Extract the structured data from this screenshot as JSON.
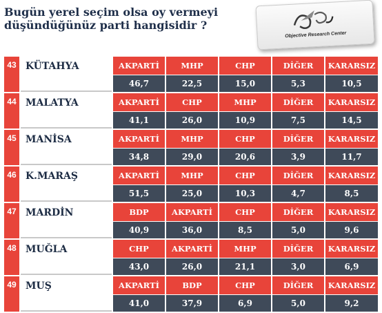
{
  "header": {
    "title": "Bugün yerel seçim olsa oy vermeyi düşündüğünüz  parti hangisidir ?",
    "logo_text": "Objective Research Center",
    "logo_mark": "ORC"
  },
  "colors": {
    "accent_red": "#e8443a",
    "value_bg": "#3f4a59",
    "title_color": "#1f2f4a"
  },
  "rows": [
    {
      "no": "43",
      "city": "KÜTAHYA",
      "parties": [
        "AKPARTİ",
        "MHP",
        "CHP",
        "DİĞER",
        "KARARSIZ"
      ],
      "values": [
        "46,7",
        "22,5",
        "15,0",
        "5,3",
        "10,5"
      ]
    },
    {
      "no": "44",
      "city": "MALATYA",
      "parties": [
        "AKPARTİ",
        "CHP",
        "MHP",
        "DİĞER",
        "KARARSIZ"
      ],
      "values": [
        "41,1",
        "26,0",
        "10,9",
        "7,5",
        "14,5"
      ]
    },
    {
      "no": "45",
      "city": "MANİSA",
      "parties": [
        "AKPARTİ",
        "MHP",
        "CHP",
        "DİĞER",
        "KARARSIZ"
      ],
      "values": [
        "34,8",
        "29,0",
        "20,6",
        "3,9",
        "11,7"
      ]
    },
    {
      "no": "46",
      "city": "K.MARAŞ",
      "parties": [
        "AKPARTİ",
        "MHP",
        "CHP",
        "DİĞER",
        "KARARSIZ"
      ],
      "values": [
        "51,5",
        "25,0",
        "10,3",
        "4,7",
        "8,5"
      ]
    },
    {
      "no": "47",
      "city": "MARDİN",
      "parties": [
        "BDP",
        "AKPARTİ",
        "CHP",
        "DİĞER",
        "KARARSIZ"
      ],
      "values": [
        "40,9",
        "36,0",
        "8,5",
        "5,0",
        "9,6"
      ]
    },
    {
      "no": "48",
      "city": "MUĞLA",
      "parties": [
        "CHP",
        "AKPARTİ",
        "MHP",
        "DİĞER",
        "KARARSIZ"
      ],
      "values": [
        "43,0",
        "26,0",
        "21,1",
        "3,0",
        "6,9"
      ]
    },
    {
      "no": "49",
      "city": "MUŞ",
      "parties": [
        "AKPARTİ",
        "BDP",
        "CHP",
        "DİĞER",
        "KARARSIZ"
      ],
      "values": [
        "41,0",
        "37,9",
        "6,9",
        "5,0",
        "9,2"
      ]
    }
  ]
}
